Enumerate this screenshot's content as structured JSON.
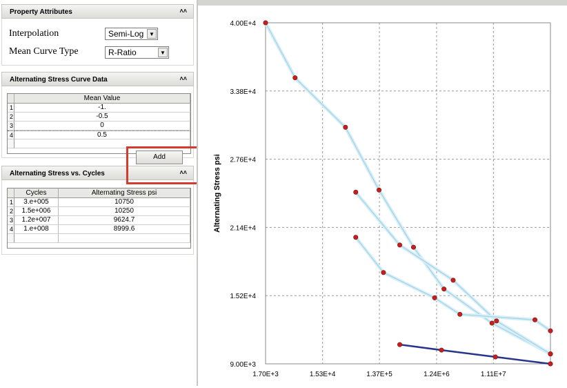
{
  "property_panel": {
    "title": "Property Attributes",
    "collapse_icon": "double-chevron-up-icon",
    "interpolation_label": "Interpolation",
    "interpolation_value": "Semi-Log",
    "mean_curve_label": "Mean Curve Type",
    "mean_curve_value": "R-Ratio"
  },
  "curve_data_panel": {
    "title": "Alternating Stress Curve Data",
    "column": "Mean Value",
    "rows": [
      {
        "n": "1",
        "value": "-1."
      },
      {
        "n": "2",
        "value": "-0.5"
      },
      {
        "n": "3",
        "value": "0"
      },
      {
        "n": "4",
        "value": "0.5"
      }
    ],
    "add_button": "Add"
  },
  "cycles_panel": {
    "title": "Alternating Stress vs. Cycles",
    "columns": [
      "Cycles",
      "Alternating Stress psi"
    ],
    "rows": [
      {
        "n": "1",
        "cycles": "3.e+005",
        "stress": "10750"
      },
      {
        "n": "2",
        "cycles": "1.5e+006",
        "stress": "10250"
      },
      {
        "n": "3",
        "cycles": "1.2e+007",
        "stress": "9624.7"
      },
      {
        "n": "4",
        "cycles": "1.e+008",
        "stress": "8999.6"
      }
    ]
  },
  "chart_data": {
    "type": "line",
    "title": "",
    "xlabel": "",
    "ylabel": "Alternating Stress psi",
    "x_scale": "log",
    "xlim": [
      1700,
      100000000
    ],
    "ylim": [
      9000,
      40000
    ],
    "x_ticks": [
      "1.70E+3",
      "1.53E+4",
      "1.37E+5",
      "1.24E+6",
      "1.11E+7"
    ],
    "y_ticks": [
      "9.00E+3",
      "1.52E+4",
      "2.14E+4",
      "2.76E+4",
      "3.38E+4",
      "4.00E+4"
    ],
    "x_tick_values": [
      1700,
      15300,
      137000,
      1240000,
      11100000
    ],
    "y_tick_values": [
      9000,
      15200,
      21400,
      27600,
      33800,
      40000
    ],
    "grid": true,
    "series": [
      {
        "color": "#9fd3e6",
        "highlighted": false,
        "x": [
          1700,
          5300,
          37000,
          135000,
          510000,
          1650000,
          10500000,
          100000000
        ],
        "y": [
          40000,
          35000,
          30500,
          24800,
          19600,
          15800,
          12700,
          9900
        ]
      },
      {
        "color": "#9fd3e6",
        "highlighted": false,
        "x": [
          55000,
          300000,
          2350000,
          12500000,
          100000000
        ],
        "y": [
          24600,
          19800,
          16600,
          12900,
          9900
        ]
      },
      {
        "color": "#9fd3e6",
        "highlighted": false,
        "x": [
          55000,
          160000,
          1150000,
          3050000,
          55000000,
          100000000
        ],
        "y": [
          20500,
          17300,
          15000,
          13500,
          13000,
          12000
        ]
      },
      {
        "color": "#27368a",
        "highlighted": true,
        "x": [
          300000,
          1500000,
          12000000,
          100000000
        ],
        "y": [
          10750,
          10250,
          9624.7,
          8999.6
        ]
      }
    ],
    "marker_color": "#c81e1e"
  }
}
